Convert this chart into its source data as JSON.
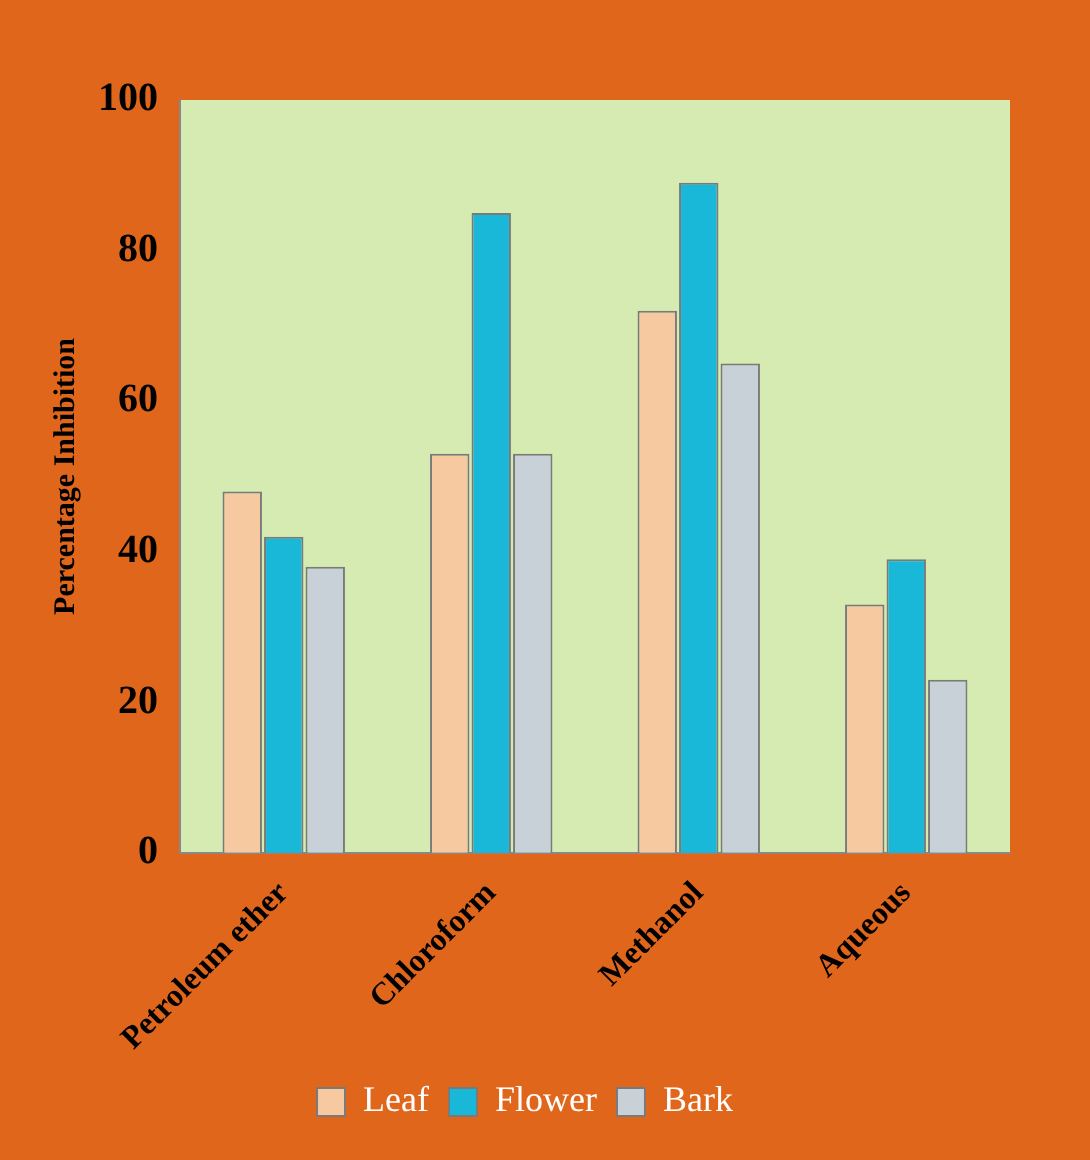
{
  "chart_data": {
    "type": "bar",
    "ylabel": "Percentage Inhibition",
    "categories": [
      "Petroleum ether",
      "Chloroform",
      "Methanol",
      "Aqueous"
    ],
    "series": [
      {
        "name": "Leaf",
        "color": "#f6c9a0",
        "values": [
          48,
          53,
          72,
          33
        ]
      },
      {
        "name": "Flower",
        "color": "#1ab8d8",
        "values": [
          42,
          85,
          89,
          39
        ]
      },
      {
        "name": "Bark",
        "color": "#c8d0d8",
        "values": [
          38,
          53,
          65,
          23
        ]
      }
    ],
    "ylim": [
      0,
      100
    ],
    "yticks": [
      0,
      20,
      40,
      60,
      80,
      100
    ],
    "grid": false,
    "legend": "bottom"
  }
}
